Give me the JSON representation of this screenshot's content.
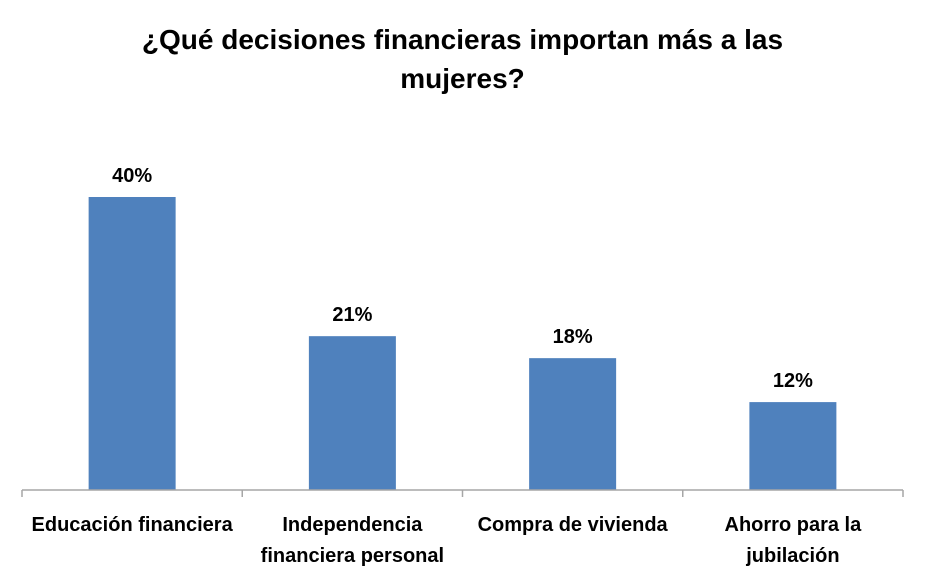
{
  "chart_data": {
    "type": "bar",
    "title_lines": [
      "¿Qué decisiones financieras importan más a las",
      "mujeres?"
    ],
    "categories": [
      [
        "Educación financiera"
      ],
      [
        "Independencia",
        "financiera personal"
      ],
      [
        "Compra de vivienda"
      ],
      [
        "Ahorro para la",
        "jubilación"
      ]
    ],
    "values": [
      40,
      21,
      18,
      12
    ],
    "data_labels": [
      "40%",
      "21%",
      "18%",
      "12%"
    ],
    "value_unit": "%",
    "ylim": [
      0,
      40
    ],
    "grid": false,
    "legend": "none",
    "colors": {
      "bar": "#4F81BD",
      "axis": "#A6A6A6",
      "text": "#000000"
    }
  }
}
